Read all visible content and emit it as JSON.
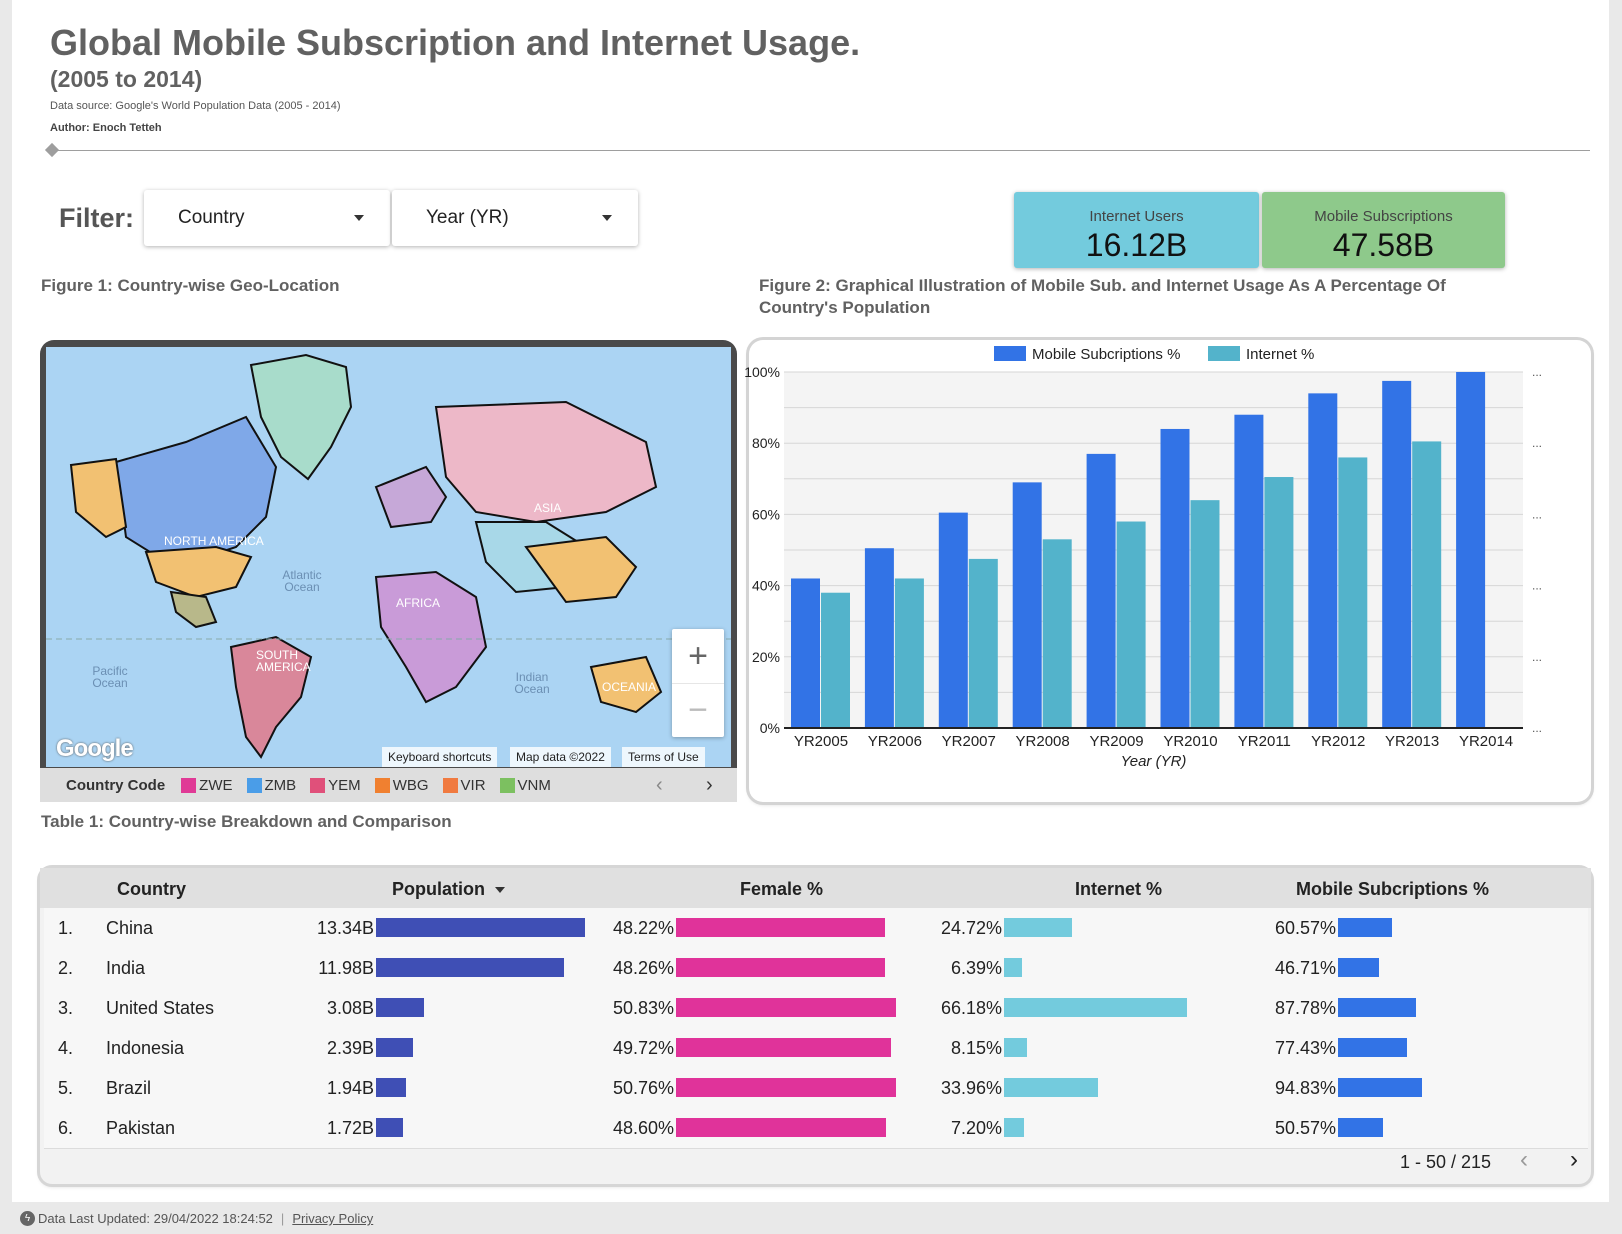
{
  "header": {
    "title": "Global Mobile Subscription and Internet Usage.",
    "subtitle": "(2005 to 2014)",
    "source": "Data source: Google's World Population Data (2005 - 2014)",
    "author": "Author: Enoch Tetteh"
  },
  "filters": {
    "label": "Filter:",
    "country": "Country",
    "year": "Year (YR)"
  },
  "kpis": {
    "internet_label": "Internet Users",
    "internet_value": "16.12B",
    "mobile_label": "Mobile Subscriptions",
    "mobile_value": "47.58B",
    "internet_color": "#73cbdd",
    "mobile_color": "#8ec98b"
  },
  "figures": {
    "fig1": "Figure 1: Country-wise Geo-Location",
    "fig2": "Figure 2: Graphical Illustration of Mobile Sub. and Internet Usage As A Percentage Of Country's Population",
    "table1": "Table 1: Country-wise Breakdown and Comparison"
  },
  "map": {
    "labels": {
      "north_america": "NORTH AMERICA",
      "south_america": "SOUTH AMERICA",
      "asia": "ASIA",
      "africa": "AFRICA",
      "oceania": "OCEANIA",
      "atlantic": "Atlantic Ocean",
      "pacific": "Pacific Ocean",
      "indian": "Indian Ocean"
    },
    "logo": "Google",
    "attribution": {
      "shortcuts": "Keyboard shortcuts",
      "mapdata": "Map data ©2022",
      "terms": "Terms of Use"
    },
    "zoom_in": "+",
    "zoom_out": "−",
    "legend": {
      "title": "Country Code",
      "items": [
        {
          "code": "ZWE",
          "color": "#e03a96"
        },
        {
          "code": "ZMB",
          "color": "#4a9de8"
        },
        {
          "code": "YEM",
          "color": "#e0507a"
        },
        {
          "code": "WBG",
          "color": "#f08030"
        },
        {
          "code": "VIR",
          "color": "#f07a40"
        },
        {
          "code": "VNM",
          "color": "#7cc060"
        }
      ],
      "prev": "‹",
      "next": "›"
    }
  },
  "chart_data": {
    "type": "bar",
    "categories": [
      "YR2005",
      "YR2006",
      "YR2007",
      "YR2008",
      "YR2009",
      "YR2010",
      "YR2011",
      "YR2012",
      "YR2013",
      "YR2014"
    ],
    "series": [
      {
        "name": "Mobile Subcriptions %",
        "color": "#3273e6",
        "values": [
          42,
          50.5,
          60.5,
          69,
          77,
          84,
          88,
          94,
          97.5,
          100
        ]
      },
      {
        "name": "Internet %",
        "color": "#53b3cb",
        "values": [
          38,
          42,
          47.5,
          53,
          58,
          64,
          70.5,
          76,
          80.5,
          null
        ]
      }
    ],
    "xlabel": "Year (YR)",
    "ylabel": "",
    "ylim": [
      0,
      100
    ],
    "yticks": [
      "0%",
      "20%",
      "40%",
      "60%",
      "80%",
      "100%"
    ],
    "grid": true,
    "legend": "top-center"
  },
  "table": {
    "columns": {
      "country": "Country",
      "population": "Population",
      "female": "Female %",
      "internet": "Internet %",
      "mobile": "Mobile Subcriptions %"
    },
    "colors": {
      "population": "#3f4fb5",
      "female": "#e0339a",
      "internet": "#73cbdd",
      "mobile": "#3273e6"
    },
    "rows": [
      {
        "rank": "1.",
        "country": "China",
        "population": "13.34B",
        "pop_value": 13.34,
        "female": "48.22%",
        "female_value": 48.22,
        "internet": "24.72%",
        "internet_value": 24.72,
        "mobile": "60.57%",
        "mobile_value": 60.57
      },
      {
        "rank": "2.",
        "country": "India",
        "population": "11.98B",
        "pop_value": 11.98,
        "female": "48.26%",
        "female_value": 48.26,
        "internet": "6.39%",
        "internet_value": 6.39,
        "mobile": "46.71%",
        "mobile_value": 46.71
      },
      {
        "rank": "3.",
        "country": "United States",
        "population": "3.08B",
        "pop_value": 3.08,
        "female": "50.83%",
        "female_value": 50.83,
        "internet": "66.18%",
        "internet_value": 66.18,
        "mobile": "87.78%",
        "mobile_value": 87.78
      },
      {
        "rank": "4.",
        "country": "Indonesia",
        "population": "2.39B",
        "pop_value": 2.39,
        "female": "49.72%",
        "female_value": 49.72,
        "internet": "8.15%",
        "internet_value": 8.15,
        "mobile": "77.43%",
        "mobile_value": 77.43
      },
      {
        "rank": "5.",
        "country": "Brazil",
        "population": "1.94B",
        "pop_value": 1.94,
        "female": "50.76%",
        "female_value": 50.76,
        "internet": "33.96%",
        "internet_value": 33.96,
        "mobile": "94.83%",
        "mobile_value": 94.83
      },
      {
        "rank": "6.",
        "country": "Pakistan",
        "population": "1.72B",
        "pop_value": 1.72,
        "female": "48.60%",
        "female_value": 48.6,
        "internet": "7.20%",
        "internet_value": 7.2,
        "mobile": "50.57%",
        "mobile_value": 50.57
      }
    ],
    "pager": "1 - 50 / 215",
    "prev": "‹",
    "next": "›"
  },
  "footer": {
    "updated": "Data Last Updated: 29/04/2022 18:24:52",
    "privacy": "Privacy Policy"
  }
}
